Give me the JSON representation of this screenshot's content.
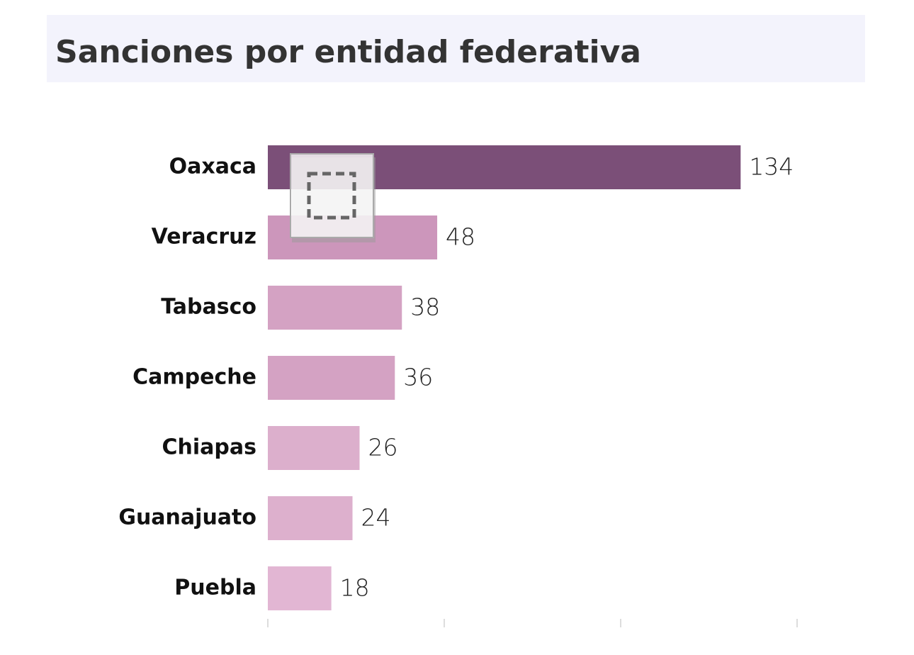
{
  "chart_data": {
    "type": "hbar",
    "title": "Sanciones por entidad federativa",
    "categories": [
      "Oaxaca",
      "Veracruz",
      "Tabasco",
      "Campeche",
      "Chiapas",
      "Guanajuato",
      "Puebla"
    ],
    "values": [
      134,
      48,
      38,
      36,
      26,
      24,
      18
    ],
    "colors": [
      "#7b4f78",
      "#cc96bb",
      "#d4a2c3",
      "#d4a2c3",
      "#dcafcc",
      "#ddb0cd",
      "#e2b6d3"
    ],
    "xlim": [
      0,
      150
    ],
    "xticks": [
      0,
      50,
      100,
      150
    ]
  }
}
